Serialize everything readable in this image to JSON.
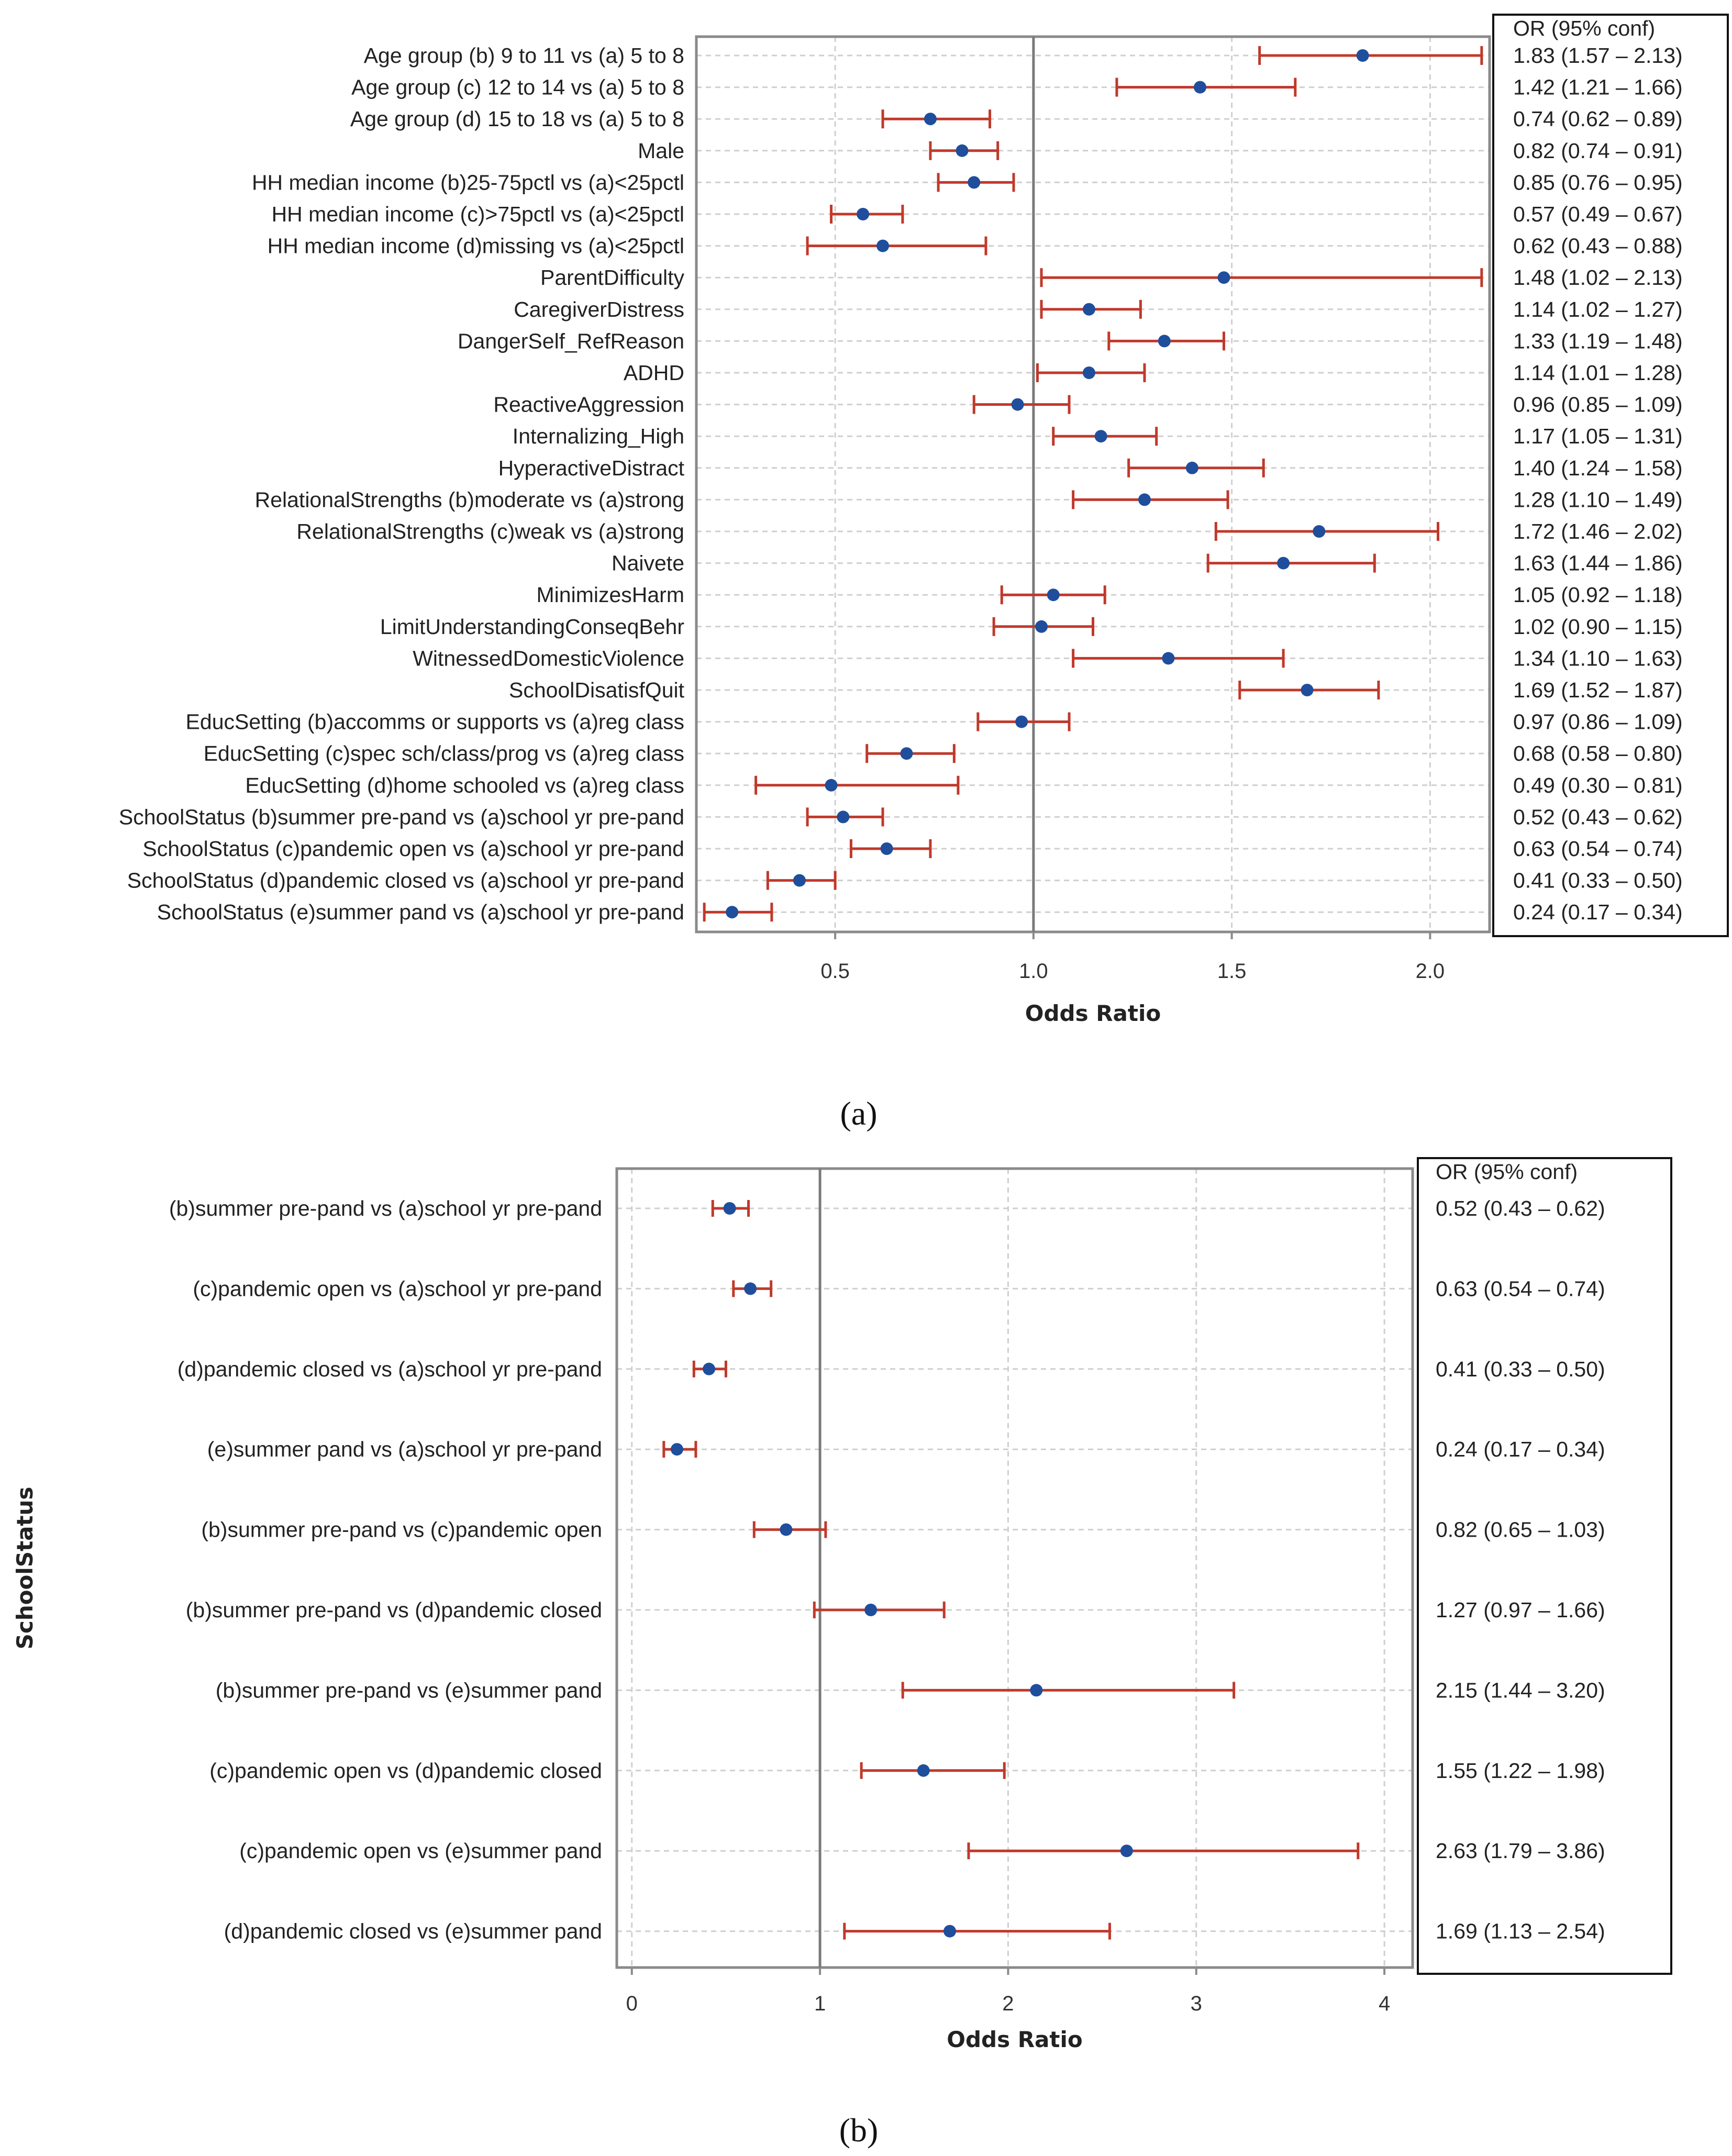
{
  "chart_data": [
    {
      "type": "forest",
      "caption": "(a)",
      "xlabel": "Odds Ratio",
      "xlim": [
        0.15,
        2.15
      ],
      "xticks": [
        0.5,
        1.0,
        1.5,
        2.0
      ],
      "xtick_labels": [
        "0.5",
        "1.0",
        "1.5",
        "2.0"
      ],
      "reference_line": 1.0,
      "or_header": "OR (95% conf)",
      "rows": [
        {
          "label": "Age group (b) 9 to 11 vs (a) 5 to 8",
          "or": 1.83,
          "lo": 1.57,
          "hi": 2.13,
          "text": "1.83 (1.57 – 2.13)"
        },
        {
          "label": "Age group (c) 12 to 14 vs (a) 5 to 8",
          "or": 1.42,
          "lo": 1.21,
          "hi": 1.66,
          "text": "1.42 (1.21 – 1.66)"
        },
        {
          "label": "Age group (d) 15 to 18 vs (a) 5 to 8",
          "or": 0.74,
          "lo": 0.62,
          "hi": 0.89,
          "text": "0.74 (0.62 – 0.89)"
        },
        {
          "label": "Male",
          "or": 0.82,
          "lo": 0.74,
          "hi": 0.91,
          "text": "0.82 (0.74 – 0.91)"
        },
        {
          "label": "HH median income (b)25-75pctl vs (a)<25pctl",
          "or": 0.85,
          "lo": 0.76,
          "hi": 0.95,
          "text": "0.85 (0.76 – 0.95)"
        },
        {
          "label": "HH median income (c)>75pctl vs (a)<25pctl",
          "or": 0.57,
          "lo": 0.49,
          "hi": 0.67,
          "text": "0.57 (0.49 – 0.67)"
        },
        {
          "label": "HH median income (d)missing vs (a)<25pctl",
          "or": 0.62,
          "lo": 0.43,
          "hi": 0.88,
          "text": "0.62 (0.43 – 0.88)"
        },
        {
          "label": "ParentDifficulty",
          "or": 1.48,
          "lo": 1.02,
          "hi": 2.13,
          "text": "1.48 (1.02 – 2.13)"
        },
        {
          "label": "CaregiverDistress",
          "or": 1.14,
          "lo": 1.02,
          "hi": 1.27,
          "text": "1.14 (1.02 – 1.27)"
        },
        {
          "label": "DangerSelf_RefReason",
          "or": 1.33,
          "lo": 1.19,
          "hi": 1.48,
          "text": "1.33 (1.19 – 1.48)"
        },
        {
          "label": "ADHD",
          "or": 1.14,
          "lo": 1.01,
          "hi": 1.28,
          "text": "1.14 (1.01 – 1.28)"
        },
        {
          "label": "ReactiveAggression",
          "or": 0.96,
          "lo": 0.85,
          "hi": 1.09,
          "text": "0.96 (0.85 – 1.09)"
        },
        {
          "label": "Internalizing_High",
          "or": 1.17,
          "lo": 1.05,
          "hi": 1.31,
          "text": "1.17 (1.05 – 1.31)"
        },
        {
          "label": "HyperactiveDistract",
          "or": 1.4,
          "lo": 1.24,
          "hi": 1.58,
          "text": "1.40 (1.24 – 1.58)"
        },
        {
          "label": "RelationalStrengths (b)moderate vs (a)strong",
          "or": 1.28,
          "lo": 1.1,
          "hi": 1.49,
          "text": "1.28 (1.10 – 1.49)"
        },
        {
          "label": "RelationalStrengths (c)weak vs (a)strong",
          "or": 1.72,
          "lo": 1.46,
          "hi": 2.02,
          "text": "1.72 (1.46 – 2.02)"
        },
        {
          "label": "Naivete",
          "or": 1.63,
          "lo": 1.44,
          "hi": 1.86,
          "text": "1.63 (1.44 – 1.86)"
        },
        {
          "label": "MinimizesHarm",
          "or": 1.05,
          "lo": 0.92,
          "hi": 1.18,
          "text": "1.05 (0.92 – 1.18)"
        },
        {
          "label": "LimitUnderstandingConseqBehr",
          "or": 1.02,
          "lo": 0.9,
          "hi": 1.15,
          "text": "1.02 (0.90 – 1.15)"
        },
        {
          "label": "WitnessedDomesticViolence",
          "or": 1.34,
          "lo": 1.1,
          "hi": 1.63,
          "text": "1.34 (1.10 – 1.63)"
        },
        {
          "label": "SchoolDisatisfQuit",
          "or": 1.69,
          "lo": 1.52,
          "hi": 1.87,
          "text": "1.69 (1.52 – 1.87)"
        },
        {
          "label": "EducSetting (b)accomms or supports vs (a)reg class",
          "or": 0.97,
          "lo": 0.86,
          "hi": 1.09,
          "text": "0.97 (0.86 – 1.09)"
        },
        {
          "label": "EducSetting (c)spec sch/class/prog vs (a)reg class",
          "or": 0.68,
          "lo": 0.58,
          "hi": 0.8,
          "text": "0.68 (0.58 – 0.80)"
        },
        {
          "label": "EducSetting (d)home schooled vs (a)reg class",
          "or": 0.49,
          "lo": 0.3,
          "hi": 0.81,
          "text": "0.49 (0.30 – 0.81)"
        },
        {
          "label": "SchoolStatus (b)summer pre-pand vs (a)school yr pre-pand",
          "or": 0.52,
          "lo": 0.43,
          "hi": 0.62,
          "text": "0.52 (0.43 – 0.62)"
        },
        {
          "label": "SchoolStatus (c)pandemic open vs (a)school yr pre-pand",
          "or": 0.63,
          "lo": 0.54,
          "hi": 0.74,
          "text": "0.63 (0.54 – 0.74)"
        },
        {
          "label": "SchoolStatus (d)pandemic closed vs (a)school yr pre-pand",
          "or": 0.41,
          "lo": 0.33,
          "hi": 0.5,
          "text": "0.41 (0.33 – 0.50)"
        },
        {
          "label": "SchoolStatus (e)summer pand vs (a)school yr pre-pand",
          "or": 0.24,
          "lo": 0.17,
          "hi": 0.34,
          "text": "0.24 (0.17 – 0.34)"
        }
      ]
    },
    {
      "type": "forest",
      "caption": "(b)",
      "xlabel": "Odds Ratio",
      "ylabel": "SchoolStatus",
      "xlim": [
        -0.08,
        4.15
      ],
      "xticks": [
        0,
        1,
        2,
        3,
        4
      ],
      "xtick_labels": [
        "0",
        "1",
        "2",
        "3",
        "4"
      ],
      "reference_line": 1,
      "or_header": "OR (95% conf)",
      "rows": [
        {
          "label": "(b)summer pre-pand vs (a)school yr pre-pand",
          "or": 0.52,
          "lo": 0.43,
          "hi": 0.62,
          "text": "0.52 (0.43 – 0.62)"
        },
        {
          "label": "(c)pandemic open vs (a)school yr pre-pand",
          "or": 0.63,
          "lo": 0.54,
          "hi": 0.74,
          "text": "0.63 (0.54 – 0.74)"
        },
        {
          "label": "(d)pandemic closed vs (a)school yr pre-pand",
          "or": 0.41,
          "lo": 0.33,
          "hi": 0.5,
          "text": "0.41 (0.33 – 0.50)"
        },
        {
          "label": "(e)summer pand vs (a)school yr pre-pand",
          "or": 0.24,
          "lo": 0.17,
          "hi": 0.34,
          "text": "0.24 (0.17 – 0.34)"
        },
        {
          "label": "(b)summer pre-pand vs (c)pandemic open",
          "or": 0.82,
          "lo": 0.65,
          "hi": 1.03,
          "text": "0.82 (0.65 – 1.03)"
        },
        {
          "label": "(b)summer pre-pand vs (d)pandemic closed",
          "or": 1.27,
          "lo": 0.97,
          "hi": 1.66,
          "text": "1.27 (0.97 – 1.66)"
        },
        {
          "label": "(b)summer pre-pand vs (e)summer pand",
          "or": 2.15,
          "lo": 1.44,
          "hi": 3.2,
          "text": "2.15 (1.44 – 3.20)"
        },
        {
          "label": "(c)pandemic open vs (d)pandemic closed",
          "or": 1.55,
          "lo": 1.22,
          "hi": 1.98,
          "text": "1.55 (1.22 – 1.98)"
        },
        {
          "label": "(c)pandemic open vs (e)summer pand",
          "or": 2.63,
          "lo": 1.79,
          "hi": 3.86,
          "text": "2.63 (1.79 – 3.86)"
        },
        {
          "label": "(d)pandemic closed vs (e)summer pand",
          "or": 1.69,
          "lo": 1.13,
          "hi": 2.54,
          "text": "1.69 (1.13 – 2.54)"
        }
      ]
    }
  ],
  "colors": {
    "ci": "#c0392b",
    "point": "#1f4e9c",
    "reference": "#7a7a7a",
    "frame": "#8a8a8a",
    "grid": "#cfcfcf"
  }
}
